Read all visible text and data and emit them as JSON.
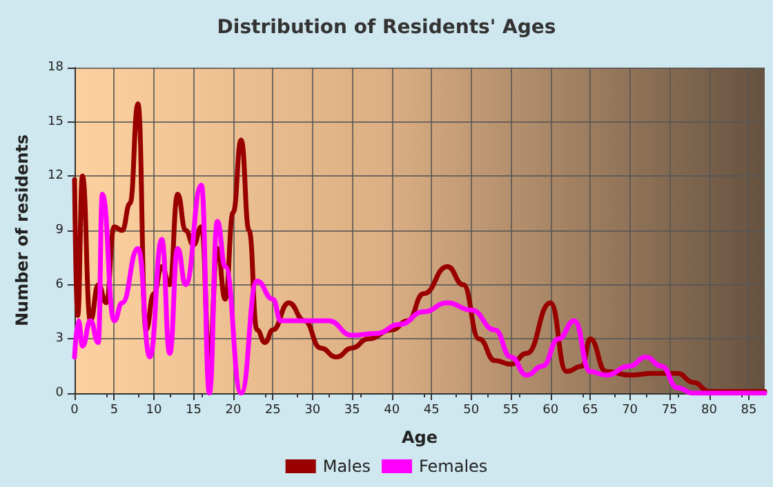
{
  "chart_data": {
    "type": "line",
    "title": "Distribution of Residents' Ages",
    "xlabel": "Age",
    "ylabel": "Number of residents",
    "xlim": [
      0,
      87
    ],
    "xticks": [
      0,
      5,
      10,
      15,
      20,
      25,
      30,
      35,
      40,
      45,
      50,
      55,
      60,
      65,
      70,
      75,
      80,
      85
    ],
    "ylim": [
      0,
      18
    ],
    "yticks": [
      0,
      3,
      6,
      9,
      12,
      15,
      18
    ],
    "grid": true,
    "legend": "bottom",
    "marker": "none",
    "line_style": "solid",
    "series": [
      {
        "name": "Males",
        "color": "#990000",
        "x": [
          0,
          0.4,
          1,
          2,
          3,
          4,
          5,
          6,
          7,
          8,
          9,
          10,
          11,
          12,
          13,
          14,
          15,
          16,
          17,
          18,
          19,
          20,
          21,
          22,
          23,
          24,
          25,
          27,
          29,
          31,
          33,
          35,
          37,
          40,
          42,
          44,
          47,
          49,
          51,
          53,
          55,
          57,
          60,
          62,
          64,
          65,
          67,
          70,
          73,
          76,
          78,
          80,
          87
        ],
        "values": [
          11.8,
          4.3,
          12,
          4,
          6,
          5,
          9.2,
          9,
          10.5,
          16,
          3.5,
          5.5,
          7,
          6,
          11,
          9,
          8.2,
          9.2,
          2,
          8,
          5.2,
          10,
          14,
          9,
          3.5,
          2.8,
          3.5,
          5,
          4,
          2.5,
          2,
          2.5,
          3,
          3.5,
          4,
          5.5,
          7,
          6,
          3,
          1.8,
          1.6,
          2.2,
          5,
          1.2,
          1.5,
          3,
          1.2,
          1,
          1.1,
          1.1,
          0.6,
          0.1,
          0.1
        ]
      },
      {
        "name": "Females",
        "color": "#ff00ff",
        "x": [
          0,
          0.5,
          1,
          2,
          3,
          3.5,
          5,
          6,
          8,
          9.5,
          11,
          12,
          13,
          14,
          16,
          17,
          18,
          19,
          21,
          23,
          25,
          26,
          29,
          32,
          35,
          38,
          41,
          44,
          47,
          50,
          53,
          55,
          57,
          59,
          61,
          63,
          65,
          67,
          70,
          72,
          74,
          76,
          78,
          87
        ],
        "values": [
          2,
          4,
          2.6,
          4,
          2.8,
          11,
          4,
          5,
          8,
          2,
          8.5,
          2.2,
          8,
          6,
          11.5,
          0,
          9.5,
          7,
          0,
          6.2,
          5.2,
          4,
          4,
          4,
          3.2,
          3.3,
          3.8,
          4.5,
          5,
          4.6,
          3.5,
          2,
          1,
          1.5,
          3,
          4,
          1.2,
          1,
          1.5,
          2,
          1.5,
          0.3,
          0,
          0
        ]
      }
    ]
  }
}
